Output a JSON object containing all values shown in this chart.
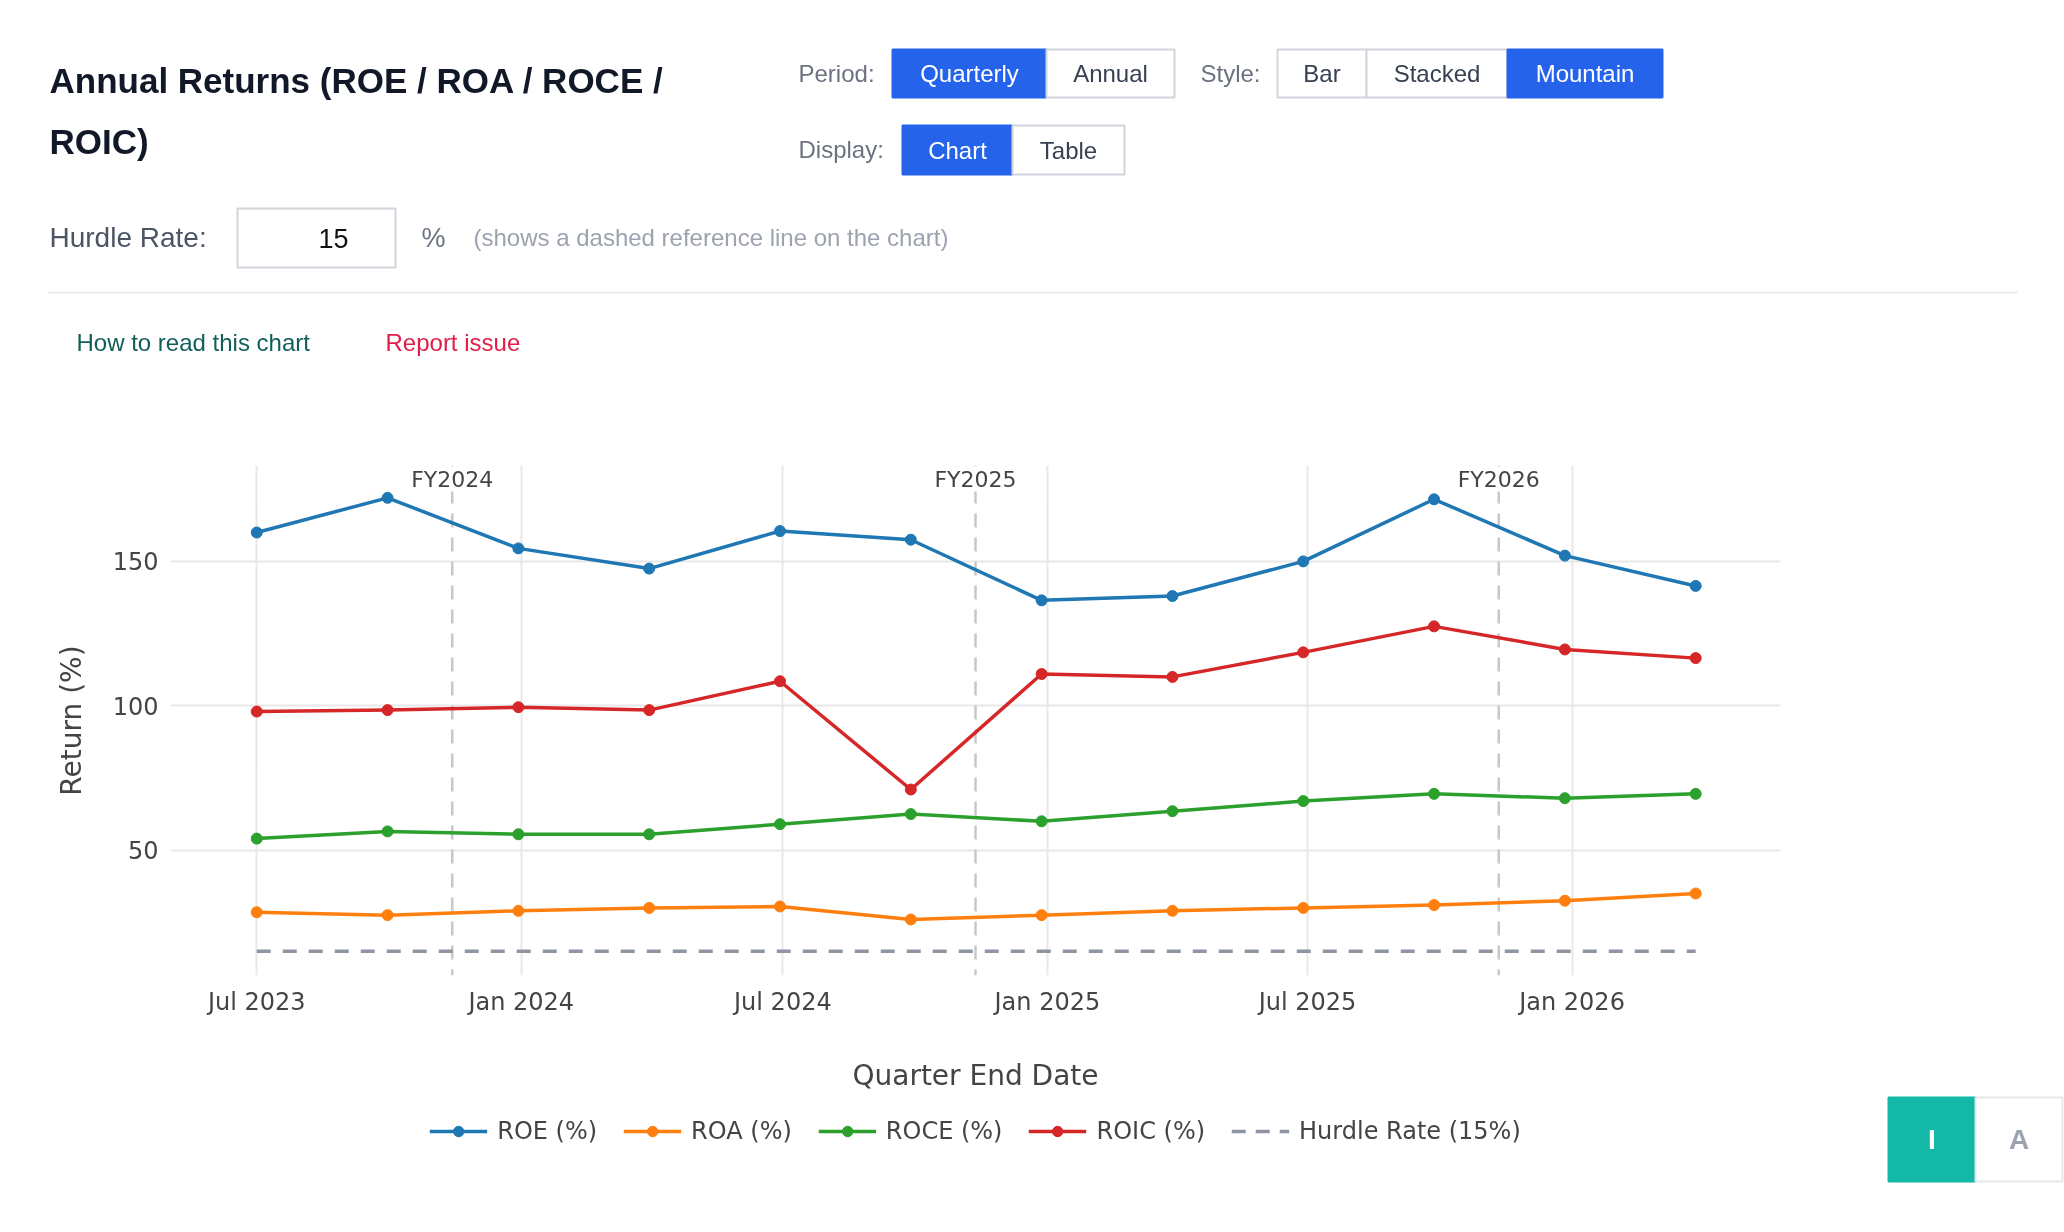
{
  "chart_data": {
    "type": "line",
    "title": "Annual Returns (ROE / ROA / ROCE / ROIC)",
    "xlabel": "Quarter End Date",
    "ylabel": "Return (%)",
    "annotations": [
      "Period:",
      "Quarterly",
      "Annual",
      "Style:",
      "Bar",
      "Stacked",
      "Mountain",
      "Display:",
      "Chart",
      "Table",
      "Hurdle Rate:",
      "15",
      "%",
      "(shows a dashed reference line on the chart)",
      "How to read this chart",
      "Report issue",
      "I",
      "A"
    ],
    "x": [
      "2023-07-01",
      "2023-09-30",
      "2023-12-30",
      "2024-03-30",
      "2024-06-29",
      "2024-09-28",
      "2024-12-28",
      "2025-03-29",
      "2025-06-28",
      "2025-09-27",
      "2025-12-27",
      "2026-03-28"
    ],
    "series": [
      {
        "name": "ROE (%)",
        "color": "#1f77b4",
        "values": [
          160,
          172,
          154.5,
          147.5,
          160.5,
          157.5,
          136.5,
          138,
          150,
          171.5,
          152,
          141.5
        ]
      },
      {
        "name": "ROA (%)",
        "color": "#ff7f0e",
        "values": [
          28.5,
          27.5,
          29,
          30,
          30.5,
          26,
          27.5,
          29,
          30,
          31,
          32.5,
          35
        ]
      },
      {
        "name": "ROCE (%)",
        "color": "#2ca02c",
        "values": [
          54,
          56.5,
          55.5,
          55.5,
          59,
          62.5,
          60,
          63.5,
          67,
          69.5,
          68,
          69.5
        ]
      },
      {
        "name": "ROIC (%)",
        "color": "#d62728",
        "values": [
          98,
          98.5,
          99.5,
          98.5,
          108.5,
          71,
          111,
          110,
          118.5,
          127.5,
          119.5,
          116.5
        ]
      },
      {
        "name": "Hurdle Rate (15%)",
        "type": "line",
        "color": "#8e94a2",
        "line_style": "dashed",
        "marker": "none",
        "values": [
          15,
          15,
          15,
          15,
          15,
          15,
          15,
          15,
          15,
          15,
          15,
          15
        ]
      }
    ],
    "xlim": [
      "2023-05-02",
      "2026-05-26"
    ],
    "ylim": [
      6.6,
      183.2
    ],
    "xticks": [
      {
        "value": "2023-07-01",
        "label": "Jul 2023"
      },
      {
        "value": "2024-01-01",
        "label": "Jan 2024"
      },
      {
        "value": "2024-07-01",
        "label": "Jul 2024"
      },
      {
        "value": "2025-01-01",
        "label": "Jan 2025"
      },
      {
        "value": "2025-07-01",
        "label": "Jul 2025"
      },
      {
        "value": "2026-01-01",
        "label": "Jan 2026"
      }
    ],
    "yticks": [
      50,
      100,
      150
    ],
    "ref_lines": [
      {
        "axis": "x",
        "value": "2023-11-14",
        "label": "FY2024",
        "color": "#c8c8c8",
        "line_style": "dashed"
      },
      {
        "axis": "x",
        "value": "2024-11-12",
        "label": "FY2025",
        "color": "#c8c8c8",
        "line_style": "dashed"
      },
      {
        "axis": "x",
        "value": "2025-11-11",
        "label": "FY2026",
        "color": "#c8c8c8",
        "line_style": "dashed"
      }
    ],
    "grid": true,
    "legend": "bottom",
    "marker": "circle",
    "line_style": "solid"
  }
}
